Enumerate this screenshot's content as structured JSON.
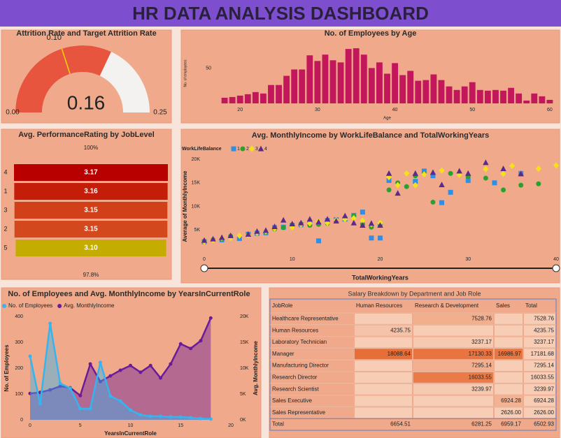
{
  "header": {
    "title": "HR DATA ANALYSIS DASHBOARD"
  },
  "chart_data": [
    {
      "type": "gauge",
      "title": "Attrition Rate and Target Attrition Rate",
      "value": 0.16,
      "min": {
        "value": 0,
        "label": "0.00"
      },
      "max": {
        "value": 0.25,
        "label": "0.25"
      },
      "target": {
        "value": 0.1,
        "label": "0.10"
      },
      "color": "#e8553f",
      "track_color": "#f4f2f0",
      "target_color": "#f5d90a"
    },
    {
      "type": "bar",
      "title": "No. of Employees by Age",
      "x_label": "Age",
      "y_label": "No. of employees",
      "x": [
        18,
        19,
        20,
        21,
        22,
        23,
        24,
        25,
        26,
        27,
        28,
        29,
        30,
        31,
        32,
        33,
        34,
        35,
        36,
        37,
        38,
        39,
        40,
        41,
        42,
        43,
        44,
        45,
        46,
        47,
        48,
        49,
        50,
        51,
        52,
        53,
        54,
        55,
        56,
        57,
        58,
        59,
        60
      ],
      "values": [
        8,
        9,
        11,
        13,
        16,
        14,
        26,
        26,
        39,
        48,
        48,
        68,
        60,
        69,
        61,
        58,
        77,
        78,
        69,
        50,
        58,
        42,
        57,
        40,
        46,
        32,
        33,
        41,
        33,
        24,
        19,
        24,
        30,
        19,
        18,
        19,
        18,
        22,
        14,
        4,
        14,
        10,
        5
      ],
      "color": "#c2185b",
      "xlim": [
        17,
        61
      ],
      "ylim": [
        0,
        85
      ],
      "xticks": [
        20,
        30,
        40,
        50,
        60
      ],
      "yticks": [
        50
      ]
    },
    {
      "type": "funnel",
      "title": "Avg. PerformanceRating by JobLevel",
      "categories": [
        "4",
        "1",
        "3",
        "2",
        "5"
      ],
      "values": [
        3.17,
        3.16,
        3.15,
        3.15,
        3.1
      ],
      "value_labels": [
        "3.17",
        "3.16",
        "3.15",
        "3.15",
        "3.10"
      ],
      "colors": [
        "#b80000",
        "#c41e0a",
        "#d2401a",
        "#d4481d",
        "#c4ad00"
      ],
      "top_label": "100%",
      "bottom_label": "97.8%"
    },
    {
      "type": "scatter",
      "title": "Avg. MonthlyIncome by WorkLifeBalance and TotalWorkingYears",
      "x_label": "TotalWorkingYears",
      "y_label": "Average of MonthlyIncome",
      "legend_title": "WorkLifeBalance",
      "xlim": [
        0,
        40
      ],
      "ylim": [
        0,
        20000
      ],
      "xticks": [
        0,
        10,
        20,
        30,
        40
      ],
      "yticks": [
        {
          "value": 5000,
          "label": "5K"
        },
        {
          "value": 10000,
          "label": "10K"
        },
        {
          "value": 15000,
          "label": "15K"
        },
        {
          "value": 20000,
          "label": "20K"
        }
      ],
      "series": [
        {
          "name": "1",
          "color": "#2f8ee6",
          "marker": "square",
          "x": [
            0,
            2,
            4,
            5,
            6,
            7,
            8,
            9,
            10,
            11,
            12,
            13,
            14,
            15,
            16,
            17,
            18,
            19,
            20,
            21,
            24,
            25,
            26,
            27,
            28,
            30,
            33,
            36
          ],
          "values": [
            2500,
            2900,
            3200,
            4100,
            4300,
            4400,
            5500,
            5600,
            6000,
            6100,
            6500,
            2700,
            7000,
            7200,
            7300,
            8100,
            8800,
            3300,
            3300,
            15500,
            15300,
            17500,
            16500,
            10800,
            13000,
            15500,
            15000,
            17000
          ]
        },
        {
          "name": "2",
          "color": "#2ca02c",
          "marker": "circle",
          "x": [
            0,
            1,
            2,
            3,
            5,
            6,
            7,
            8,
            9,
            10,
            11,
            12,
            13,
            14,
            15,
            16,
            17,
            18,
            19,
            20,
            21,
            22,
            23,
            24,
            25,
            26,
            28,
            30,
            32,
            34,
            36,
            38
          ],
          "values": [
            2600,
            2900,
            3100,
            3700,
            4000,
            4400,
            4600,
            5200,
            5500,
            6000,
            6300,
            6000,
            6200,
            6400,
            7000,
            7500,
            8000,
            6200,
            5600,
            6000,
            13500,
            15000,
            14200,
            16500,
            16900,
            10900,
            17000,
            16300,
            16000,
            13500,
            14500,
            14800
          ]
        },
        {
          "name": "3",
          "color": "#f5e11a",
          "marker": "diamond",
          "x": [
            0,
            1,
            2,
            3,
            4,
            5,
            6,
            7,
            8,
            10,
            11,
            12,
            13,
            14,
            15,
            16,
            17,
            18,
            19,
            20,
            21,
            22,
            23,
            24,
            25,
            27,
            29,
            32,
            34,
            35,
            38,
            40
          ],
          "values": [
            2500,
            2800,
            3300,
            3300,
            3800,
            3900,
            4400,
            4700,
            5300,
            5600,
            6200,
            6400,
            6800,
            6500,
            7100,
            7300,
            7500,
            7000,
            6200,
            6500,
            16200,
            14500,
            17000,
            14500,
            16800,
            17600,
            16700,
            17900,
            16900,
            18600,
            18000,
            18700
          ]
        },
        {
          "name": "4",
          "color": "#5b2a8a",
          "marker": "triangle",
          "x": [
            0,
            1,
            2,
            3,
            5,
            6,
            7,
            8,
            9,
            10,
            11,
            12,
            13,
            14,
            15,
            16,
            17,
            18,
            19,
            20,
            21,
            22,
            24,
            26,
            27,
            29,
            30,
            32,
            34,
            36
          ],
          "values": [
            2800,
            3100,
            3400,
            3800,
            4100,
            4700,
            4900,
            5700,
            7100,
            6300,
            6500,
            7300,
            6700,
            7300,
            6900,
            8000,
            6500,
            6000,
            6400,
            6000,
            17000,
            12800,
            17000,
            17200,
            14600,
            17500,
            17000,
            19300,
            18000,
            16900
          ]
        }
      ]
    },
    {
      "type": "combo",
      "title": "No. of Employees and Avg. MonthlyIncome by YearsInCurrentRole",
      "x_label": "YearsInCurrentRole",
      "y_label": "No. of Employees",
      "y2_label": "Avg. MonthlyIncome",
      "x": [
        0,
        1,
        2,
        3,
        4,
        5,
        6,
        7,
        8,
        9,
        10,
        11,
        12,
        13,
        14,
        15,
        16,
        17,
        18
      ],
      "xlim": [
        0,
        20
      ],
      "xticks": [
        0,
        5,
        10,
        15,
        20
      ],
      "ylim": [
        0,
        400
      ],
      "yticks": [
        0,
        100,
        200,
        300,
        400
      ],
      "y2lim": [
        0,
        20000
      ],
      "y2ticks": [
        {
          "value": 0,
          "label": "0K"
        },
        {
          "value": 5000,
          "label": "5K"
        },
        {
          "value": 10000,
          "label": "10K"
        },
        {
          "value": 15000,
          "label": "15K"
        },
        {
          "value": 20000,
          "label": "20K"
        }
      ],
      "series": [
        {
          "name": "No. of Employees",
          "color": "#35b4ef",
          "values": [
            246,
            62,
            373,
            141,
            122,
            43,
            43,
            222,
            92,
            73,
            38,
            19,
            14,
            14,
            11,
            11,
            8,
            5,
            3
          ]
        },
        {
          "name": "Avg. MonthlyIncome",
          "color": "#6a1b9a",
          "axis": "y2",
          "values": [
            5100,
            5300,
            5800,
            6500,
            6200,
            4700,
            10800,
            7400,
            8500,
            9600,
            10500,
            9200,
            10500,
            8100,
            10800,
            14700,
            13800,
            15300,
            19700
          ]
        }
      ]
    }
  ],
  "table": {
    "title": "Salary Breakdown by Department and Job Role",
    "columns": [
      "JobRole",
      "Human Resources",
      "Research & Development",
      "Sales",
      "Total"
    ],
    "rows": [
      [
        "Healthcare Representative",
        null,
        "7528.76",
        null,
        "7528.76"
      ],
      [
        "Human Resources",
        "4235.75",
        null,
        null,
        "4235.75"
      ],
      [
        "Laboratory Technician",
        null,
        "3237.17",
        null,
        "3237.17"
      ],
      [
        "Manager",
        "18088.64",
        "17130.33",
        "16986.97",
        "17181.68"
      ],
      [
        "Manufacturing Director",
        null,
        "7295.14",
        null,
        "7295.14"
      ],
      [
        "Research Director",
        null,
        "16033.55",
        null,
        "16033.55"
      ],
      [
        "Research Scientist",
        null,
        "3239.97",
        null,
        "3239.97"
      ],
      [
        "Sales Executive",
        null,
        null,
        "6924.28",
        "6924.28"
      ],
      [
        "Sales Representative",
        null,
        null,
        "2626.00",
        "2626.00"
      ],
      [
        "Total",
        "6654.51",
        "6281.25",
        "6959.17",
        "6502.93"
      ]
    ]
  }
}
